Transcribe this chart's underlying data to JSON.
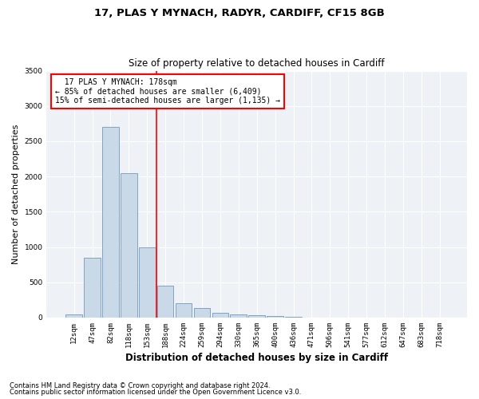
{
  "title_line1": "17, PLAS Y MYNACH, RADYR, CARDIFF, CF15 8GB",
  "title_line2": "Size of property relative to detached houses in Cardiff",
  "xlabel": "Distribution of detached houses by size in Cardiff",
  "ylabel": "Number of detached properties",
  "categories": [
    "12sqm",
    "47sqm",
    "82sqm",
    "118sqm",
    "153sqm",
    "188sqm",
    "224sqm",
    "259sqm",
    "294sqm",
    "330sqm",
    "365sqm",
    "400sqm",
    "436sqm",
    "471sqm",
    "506sqm",
    "541sqm",
    "577sqm",
    "612sqm",
    "647sqm",
    "683sqm",
    "718sqm"
  ],
  "values": [
    50,
    850,
    2700,
    2050,
    1000,
    450,
    200,
    130,
    70,
    50,
    30,
    20,
    10,
    3,
    2,
    1,
    0,
    0,
    0,
    0,
    0
  ],
  "bar_color": "#c9d9e8",
  "bar_edge_color": "#5a8ab5",
  "red_line_x": 4.5,
  "annotation_text": "  17 PLAS Y MYNACH: 178sqm  \n← 85% of detached houses are smaller (6,409)\n15% of semi-detached houses are larger (1,135) →",
  "annotation_box_color": "white",
  "annotation_box_edge_color": "red",
  "ylim": [
    0,
    3500
  ],
  "yticks": [
    0,
    500,
    1000,
    1500,
    2000,
    2500,
    3000,
    3500
  ],
  "background_color": "#eef2f7",
  "grid_color": "white",
  "footer_line1": "Contains HM Land Registry data © Crown copyright and database right 2024.",
  "footer_line2": "Contains public sector information licensed under the Open Government Licence v3.0.",
  "title_fontsize": 9.5,
  "subtitle_fontsize": 8.5,
  "tick_fontsize": 6.5,
  "ylabel_fontsize": 8,
  "xlabel_fontsize": 8.5,
  "footer_fontsize": 6,
  "annotation_fontsize": 7
}
